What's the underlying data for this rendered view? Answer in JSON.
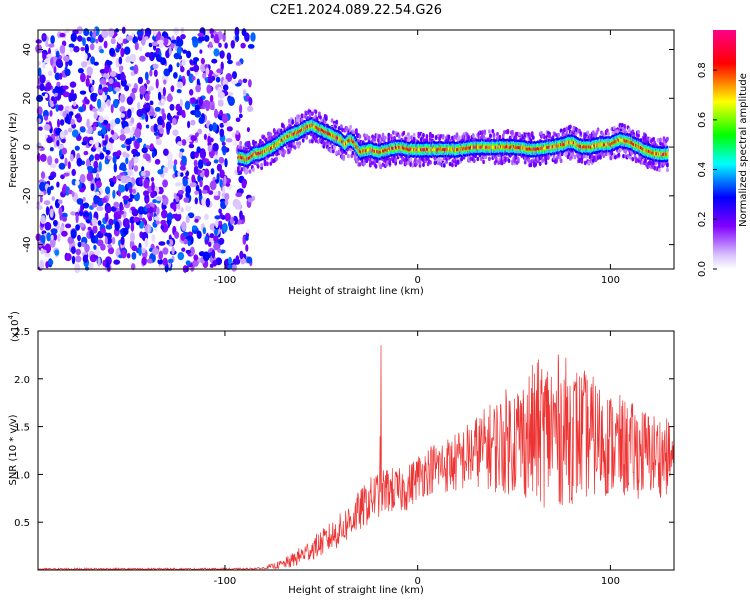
{
  "title": "C2E1.2024.089.22.54.G26",
  "chart_data": [
    {
      "type": "heatmap",
      "title": "C2E1.2024.089.22.54.G26",
      "xlabel": "Height of straight line (km)",
      "ylabel": "Frequency (Hz)",
      "xlim": [
        -197,
        133
      ],
      "ylim": [
        -50,
        48
      ],
      "xticks": [
        -100,
        0,
        100
      ],
      "yticks": [
        -40,
        -20,
        0,
        20,
        40
      ],
      "colorbar": {
        "label": "Normalized spectral amplitude",
        "range": [
          0,
          1
        ],
        "ticks": [
          "0.0",
          "0.2",
          "0.4",
          "0.6",
          "0.8"
        ],
        "colors": [
          "#ffffff",
          "#8000ff",
          "#0000ff",
          "#00ffff",
          "#00ff00",
          "#ffff00",
          "#ff0000",
          "#ff0080"
        ]
      },
      "noise_region": {
        "x_from": -197,
        "x_to": -85,
        "peak_amplitude": 0.35
      },
      "ridge": {
        "x": [
          -93,
          -88,
          -85,
          -80,
          -75,
          -70,
          -66,
          -62,
          -58,
          -55,
          -50,
          -45,
          -40,
          -38,
          -35,
          -33,
          -30,
          -25,
          -20,
          -15,
          -10,
          -5,
          0,
          5,
          10,
          20,
          30,
          40,
          50,
          60,
          70,
          75,
          80,
          85,
          90,
          95,
          100,
          105,
          110,
          115,
          120,
          125,
          130
        ],
        "y": [
          -4,
          -5,
          -3,
          -2,
          0,
          3,
          5,
          6,
          8,
          9,
          7,
          5,
          3,
          1,
          3,
          2,
          -2,
          -1,
          -2,
          -1,
          0,
          -1,
          -1,
          -1,
          -1,
          -1,
          0,
          0,
          0,
          -1,
          0,
          1,
          2,
          0,
          0,
          1,
          1,
          3,
          2,
          0,
          -2,
          -3,
          -3
        ],
        "peak_amplitude": 0.9,
        "width_hz": 6
      }
    },
    {
      "type": "line",
      "xlabel": "Height of straight line (km)",
      "ylabel": "SNR (10 * v/v)",
      "y_multiplier": "(x10",
      "y_multiplier_exp": "4",
      "xlim": [
        -197,
        133
      ],
      "ylim": [
        0,
        2.5
      ],
      "xticks": [
        -100,
        0,
        100
      ],
      "yticks": [
        0.5,
        1.0,
        1.5,
        2.0,
        2.5
      ],
      "ytick_labels": [
        "0.5",
        "1.0",
        "1.5",
        "2.0",
        "2.5"
      ],
      "color": "#ee3333",
      "series": [
        {
          "x": [
            -197,
            -180,
            -160,
            -140,
            -120,
            -100,
            -90,
            -80,
            -70,
            -65,
            -60,
            -55,
            -50,
            -45,
            -40,
            -35,
            -30,
            -25,
            -22,
            -20,
            -15,
            -10,
            -5,
            0,
            5,
            10,
            15,
            20,
            25,
            30,
            35,
            40,
            45,
            50,
            55,
            60,
            65,
            70,
            75,
            80,
            85,
            90,
            95,
            100,
            105,
            110,
            115,
            120,
            125,
            130,
            133
          ],
          "y": [
            0.01,
            0.01,
            0.01,
            0.01,
            0.01,
            0.01,
            0.01,
            0.02,
            0.06,
            0.1,
            0.16,
            0.22,
            0.28,
            0.35,
            0.42,
            0.52,
            0.62,
            0.72,
            0.78,
            0.8,
            0.84,
            0.82,
            0.86,
            0.98,
            1.04,
            1.08,
            1.1,
            1.12,
            1.18,
            1.24,
            1.28,
            1.3,
            1.34,
            1.38,
            1.4,
            1.42,
            1.45,
            1.48,
            1.46,
            1.44,
            1.42,
            1.4,
            1.36,
            1.32,
            1.28,
            1.26,
            1.24,
            1.22,
            1.2,
            1.18,
            1.16
          ],
          "noise_amplitude": [
            0.01,
            0.01,
            0.01,
            0.01,
            0.01,
            0.01,
            0.01,
            0.01,
            0.05,
            0.08,
            0.1,
            0.12,
            0.14,
            0.16,
            0.18,
            0.2,
            0.22,
            0.24,
            0.25,
            0.25,
            0.25,
            0.24,
            0.24,
            0.24,
            0.26,
            0.28,
            0.3,
            0.32,
            0.35,
            0.38,
            0.42,
            0.5,
            0.55,
            0.6,
            0.65,
            0.75,
            0.8,
            0.8,
            0.8,
            0.75,
            0.7,
            0.65,
            0.6,
            0.55,
            0.55,
            0.5,
            0.5,
            0.45,
            0.45,
            0.4,
            0.4
          ],
          "spikes": [
            {
              "x": -19,
              "y": 2.35
            },
            {
              "x": -19.5,
              "y": 1.4
            }
          ]
        }
      ]
    }
  ]
}
